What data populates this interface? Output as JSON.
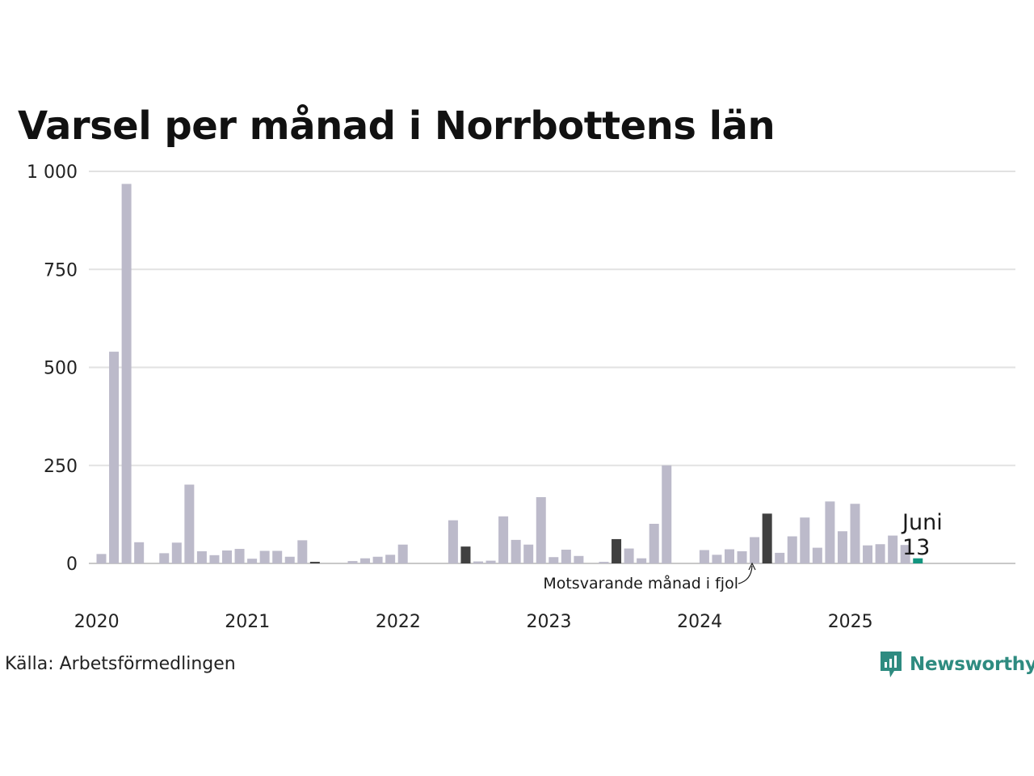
{
  "chart_data": {
    "type": "bar",
    "title": "Varsel per månad i Norrbottens län",
    "xlabel": "",
    "ylabel": "",
    "ylim": [
      0,
      1000
    ],
    "yticks": [
      0,
      250,
      500,
      750,
      1000
    ],
    "ytick_labels": [
      "0",
      "250",
      "500",
      "750",
      "1 000"
    ],
    "xtick_labels": [
      "2020",
      "2021",
      "2022",
      "2023",
      "2024",
      "2025"
    ],
    "grid": true,
    "start": "2020-01",
    "values": [
      24,
      540,
      968,
      54,
      0,
      26,
      53,
      201,
      31,
      21,
      33,
      37,
      12,
      32,
      32,
      17,
      59,
      4,
      0,
      0,
      6,
      13,
      17,
      22,
      48,
      0,
      0,
      0,
      110,
      43,
      5,
      7,
      120,
      60,
      48,
      169,
      16,
      35,
      19,
      0,
      4,
      62,
      38,
      13,
      101,
      250,
      0,
      0,
      34,
      22,
      36,
      31,
      67,
      127,
      27,
      69,
      117,
      40,
      158,
      82,
      152,
      46,
      49,
      71,
      47,
      13
    ],
    "highlighted": [
      "2021-06",
      "2022-06",
      "2023-06",
      "2024-06"
    ],
    "current": "2025-06",
    "colors": {
      "bar": "#bcbaca",
      "highlight": "#404040",
      "current": "#12957f",
      "grid": "#e2e2e2",
      "axis": "#c8c8c8"
    },
    "annotation": "Motsvarande månad i fjol",
    "current_label": {
      "month": "Juni",
      "value": "13"
    }
  },
  "source": "Källa: Arbetsförmedlingen",
  "brand": {
    "name": "Newsworthy",
    "icon": "newsworthy-logo-icon"
  }
}
